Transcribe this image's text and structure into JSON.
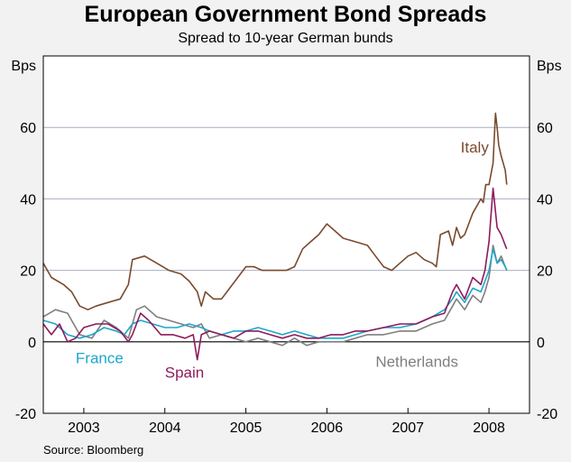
{
  "chart_data": {
    "type": "line",
    "title": "European Government Bond Spreads",
    "subtitle": "Spread to 10-year German bunds",
    "ylabel_left": "Bps",
    "ylabel_right": "Bps",
    "ylim": [
      -20,
      80
    ],
    "yticks": [
      -20,
      0,
      20,
      40,
      60
    ],
    "xlim": [
      2002.5,
      2008.5
    ],
    "xticks": [
      {
        "label": "2003",
        "value": 2003.0
      },
      {
        "label": "2004",
        "value": 2004.0
      },
      {
        "label": "2005",
        "value": 2005.0
      },
      {
        "label": "2006",
        "value": 2006.0
      },
      {
        "label": "2007",
        "value": 2007.0
      },
      {
        "label": "2008",
        "value": 2008.0
      }
    ],
    "series": [
      {
        "name": "Italy",
        "color": "#7a4a2e",
        "points": [
          [
            2002.5,
            22
          ],
          [
            2002.6,
            18
          ],
          [
            2002.75,
            16
          ],
          [
            2002.85,
            14
          ],
          [
            2002.95,
            10
          ],
          [
            2003.05,
            9
          ],
          [
            2003.15,
            10
          ],
          [
            2003.3,
            11
          ],
          [
            2003.45,
            12
          ],
          [
            2003.55,
            16
          ],
          [
            2003.6,
            23
          ],
          [
            2003.75,
            24
          ],
          [
            2003.9,
            22
          ],
          [
            2004.05,
            20
          ],
          [
            2004.2,
            19
          ],
          [
            2004.3,
            17
          ],
          [
            2004.4,
            14
          ],
          [
            2004.45,
            10
          ],
          [
            2004.5,
            14
          ],
          [
            2004.6,
            12
          ],
          [
            2004.7,
            12
          ],
          [
            2004.8,
            15
          ],
          [
            2004.9,
            18
          ],
          [
            2005.0,
            21
          ],
          [
            2005.1,
            21
          ],
          [
            2005.2,
            20
          ],
          [
            2005.3,
            20
          ],
          [
            2005.4,
            20
          ],
          [
            2005.5,
            20
          ],
          [
            2005.6,
            21
          ],
          [
            2005.7,
            26
          ],
          [
            2005.8,
            28
          ],
          [
            2005.9,
            30
          ],
          [
            2006.0,
            33
          ],
          [
            2006.1,
            31
          ],
          [
            2006.2,
            29
          ],
          [
            2006.35,
            28
          ],
          [
            2006.5,
            27
          ],
          [
            2006.6,
            24
          ],
          [
            2006.7,
            21
          ],
          [
            2006.8,
            20
          ],
          [
            2006.9,
            22
          ],
          [
            2007.0,
            24
          ],
          [
            2007.1,
            25
          ],
          [
            2007.2,
            23
          ],
          [
            2007.3,
            22
          ],
          [
            2007.35,
            21
          ],
          [
            2007.4,
            30
          ],
          [
            2007.5,
            31
          ],
          [
            2007.55,
            27
          ],
          [
            2007.6,
            32
          ],
          [
            2007.65,
            29
          ],
          [
            2007.7,
            30
          ],
          [
            2007.75,
            33
          ],
          [
            2007.8,
            36
          ],
          [
            2007.85,
            38
          ],
          [
            2007.9,
            40
          ],
          [
            2007.93,
            39
          ],
          [
            2007.96,
            44
          ],
          [
            2008.0,
            44
          ],
          [
            2008.05,
            50
          ],
          [
            2008.08,
            64
          ],
          [
            2008.1,
            60
          ],
          [
            2008.12,
            55
          ],
          [
            2008.15,
            52
          ],
          [
            2008.2,
            48
          ],
          [
            2008.22,
            44
          ]
        ]
      },
      {
        "name": "France",
        "color": "#1ea6c9",
        "points": [
          [
            2002.5,
            6
          ],
          [
            2002.65,
            5
          ],
          [
            2002.8,
            2
          ],
          [
            2002.95,
            1
          ],
          [
            2003.1,
            2
          ],
          [
            2003.25,
            4
          ],
          [
            2003.4,
            3
          ],
          [
            2003.5,
            2
          ],
          [
            2003.6,
            5
          ],
          [
            2003.7,
            6
          ],
          [
            2003.85,
            5
          ],
          [
            2004.0,
            4
          ],
          [
            2004.15,
            4
          ],
          [
            2004.3,
            5
          ],
          [
            2004.45,
            4
          ],
          [
            2004.55,
            3
          ],
          [
            2004.7,
            2
          ],
          [
            2004.85,
            3
          ],
          [
            2005.0,
            3
          ],
          [
            2005.15,
            4
          ],
          [
            2005.3,
            3
          ],
          [
            2005.45,
            2
          ],
          [
            2005.6,
            3
          ],
          [
            2005.75,
            2
          ],
          [
            2005.9,
            1
          ],
          [
            2006.05,
            1
          ],
          [
            2006.2,
            1
          ],
          [
            2006.35,
            2
          ],
          [
            2006.5,
            3
          ],
          [
            2006.7,
            4
          ],
          [
            2006.9,
            4
          ],
          [
            2007.1,
            5
          ],
          [
            2007.3,
            7
          ],
          [
            2007.45,
            9
          ],
          [
            2007.55,
            12
          ],
          [
            2007.6,
            14
          ],
          [
            2007.7,
            11
          ],
          [
            2007.8,
            15
          ],
          [
            2007.9,
            14
          ],
          [
            2007.95,
            17
          ],
          [
            2008.0,
            20
          ],
          [
            2008.05,
            26
          ],
          [
            2008.1,
            22
          ],
          [
            2008.15,
            23
          ],
          [
            2008.2,
            21
          ],
          [
            2008.22,
            20
          ]
        ]
      },
      {
        "name": "Spain",
        "color": "#8e1a5c",
        "points": [
          [
            2002.5,
            5
          ],
          [
            2002.6,
            2
          ],
          [
            2002.7,
            5
          ],
          [
            2002.8,
            0
          ],
          [
            2002.9,
            1
          ],
          [
            2003.0,
            4
          ],
          [
            2003.15,
            5
          ],
          [
            2003.3,
            5
          ],
          [
            2003.45,
            3
          ],
          [
            2003.55,
            0
          ],
          [
            2003.6,
            2
          ],
          [
            2003.7,
            8
          ],
          [
            2003.8,
            6
          ],
          [
            2003.95,
            2
          ],
          [
            2004.1,
            2
          ],
          [
            2004.25,
            1
          ],
          [
            2004.35,
            2
          ],
          [
            2004.4,
            -5
          ],
          [
            2004.45,
            2
          ],
          [
            2004.55,
            3
          ],
          [
            2004.7,
            2
          ],
          [
            2004.85,
            1
          ],
          [
            2005.0,
            3
          ],
          [
            2005.15,
            3
          ],
          [
            2005.3,
            2
          ],
          [
            2005.45,
            1
          ],
          [
            2005.6,
            2
          ],
          [
            2005.75,
            1
          ],
          [
            2005.9,
            1
          ],
          [
            2006.05,
            2
          ],
          [
            2006.2,
            2
          ],
          [
            2006.35,
            3
          ],
          [
            2006.5,
            3
          ],
          [
            2006.7,
            4
          ],
          [
            2006.9,
            5
          ],
          [
            2007.1,
            5
          ],
          [
            2007.3,
            7
          ],
          [
            2007.45,
            8
          ],
          [
            2007.55,
            14
          ],
          [
            2007.6,
            16
          ],
          [
            2007.7,
            12
          ],
          [
            2007.8,
            18
          ],
          [
            2007.9,
            16
          ],
          [
            2007.95,
            20
          ],
          [
            2008.0,
            28
          ],
          [
            2008.05,
            43
          ],
          [
            2008.1,
            32
          ],
          [
            2008.15,
            30
          ],
          [
            2008.2,
            27
          ],
          [
            2008.22,
            26
          ]
        ]
      },
      {
        "name": "Netherlands",
        "color": "#7f7f7f",
        "points": [
          [
            2002.5,
            7
          ],
          [
            2002.65,
            9
          ],
          [
            2002.8,
            8
          ],
          [
            2002.95,
            2
          ],
          [
            2003.1,
            1
          ],
          [
            2003.25,
            6
          ],
          [
            2003.4,
            4
          ],
          [
            2003.55,
            1
          ],
          [
            2003.65,
            9
          ],
          [
            2003.75,
            10
          ],
          [
            2003.9,
            7
          ],
          [
            2004.05,
            6
          ],
          [
            2004.2,
            5
          ],
          [
            2004.35,
            4
          ],
          [
            2004.45,
            5
          ],
          [
            2004.55,
            1
          ],
          [
            2004.7,
            2
          ],
          [
            2004.85,
            1
          ],
          [
            2005.0,
            0
          ],
          [
            2005.15,
            1
          ],
          [
            2005.3,
            0
          ],
          [
            2005.45,
            -1
          ],
          [
            2005.6,
            1
          ],
          [
            2005.75,
            -1
          ],
          [
            2005.9,
            0
          ],
          [
            2006.05,
            0
          ],
          [
            2006.2,
            0
          ],
          [
            2006.35,
            1
          ],
          [
            2006.5,
            2
          ],
          [
            2006.7,
            2
          ],
          [
            2006.9,
            3
          ],
          [
            2007.1,
            3
          ],
          [
            2007.3,
            5
          ],
          [
            2007.45,
            6
          ],
          [
            2007.55,
            10
          ],
          [
            2007.6,
            12
          ],
          [
            2007.7,
            9
          ],
          [
            2007.8,
            13
          ],
          [
            2007.9,
            11
          ],
          [
            2007.95,
            14
          ],
          [
            2008.0,
            18
          ],
          [
            2008.05,
            27
          ],
          [
            2008.1,
            22
          ],
          [
            2008.15,
            24
          ],
          [
            2008.2,
            21
          ],
          [
            2008.22,
            20
          ]
        ]
      }
    ],
    "annotations": [
      {
        "text": "Italy",
        "series": "Italy",
        "at": [
          2007.65,
          53
        ]
      },
      {
        "text": "France",
        "series": "France",
        "at": [
          2002.9,
          -6
        ]
      },
      {
        "text": "Spain",
        "series": "Spain",
        "at": [
          2004.0,
          -10
        ]
      },
      {
        "text": "Netherlands",
        "series": "Netherlands",
        "at": [
          2006.6,
          -7
        ]
      }
    ],
    "source": "Source: Bloomberg"
  }
}
